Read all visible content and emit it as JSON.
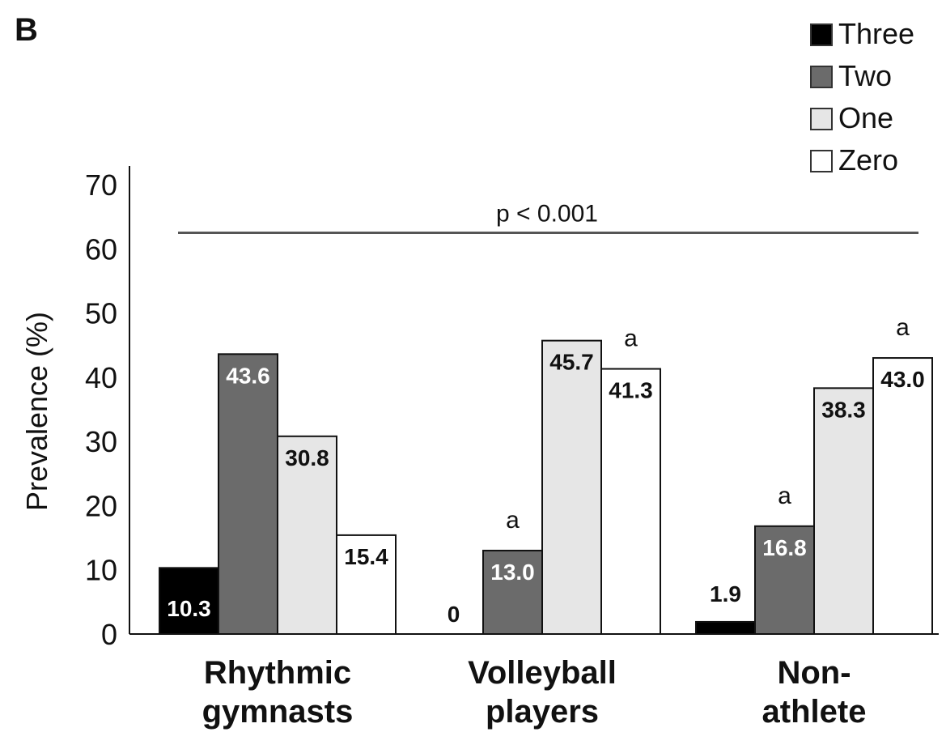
{
  "panel_label": "B",
  "chart_data": {
    "type": "bar",
    "ylabel": "Prevalence (%)",
    "ylim": [
      0,
      70
    ],
    "yticks": [
      "0",
      "10",
      "20",
      "30",
      "40",
      "50",
      "60",
      "70"
    ],
    "categories": [
      [
        "Rhythmic",
        "gymnasts"
      ],
      [
        "Volleyball",
        "players"
      ],
      [
        "Non-",
        "athlete"
      ]
    ],
    "series": [
      {
        "name": "Three",
        "color": "#000000",
        "label_color": "#ffffff",
        "values": [
          10.3,
          0,
          1.9
        ],
        "labels": [
          "10.3",
          "0",
          "1.9"
        ],
        "label_inside": [
          true,
          false,
          false
        ],
        "sig": [
          "",
          "",
          ""
        ]
      },
      {
        "name": "Two",
        "color": "#6b6b6b",
        "label_color": "#ffffff",
        "values": [
          43.6,
          13.0,
          16.8
        ],
        "labels": [
          "43.6",
          "13.0",
          "16.8"
        ],
        "label_inside": [
          true,
          true,
          true
        ],
        "sig": [
          "",
          "a",
          "a"
        ]
      },
      {
        "name": "One",
        "color": "#e6e6e6",
        "label_color": "#111111",
        "values": [
          30.8,
          45.7,
          38.3
        ],
        "labels": [
          "30.8",
          "45.7",
          "38.3"
        ],
        "label_inside": [
          true,
          true,
          true
        ],
        "sig": [
          "",
          "",
          ""
        ]
      },
      {
        "name": "Zero",
        "color": "#ffffff",
        "label_color": "#111111",
        "values": [
          15.4,
          41.3,
          43.0
        ],
        "labels": [
          "15.4",
          "41.3",
          "43.0"
        ],
        "label_inside": [
          true,
          true,
          true
        ],
        "sig": [
          "",
          "a",
          "a"
        ]
      }
    ],
    "legend_position": "top-right",
    "annotation": {
      "text": "p < 0.001",
      "y_value": 62.5
    }
  }
}
